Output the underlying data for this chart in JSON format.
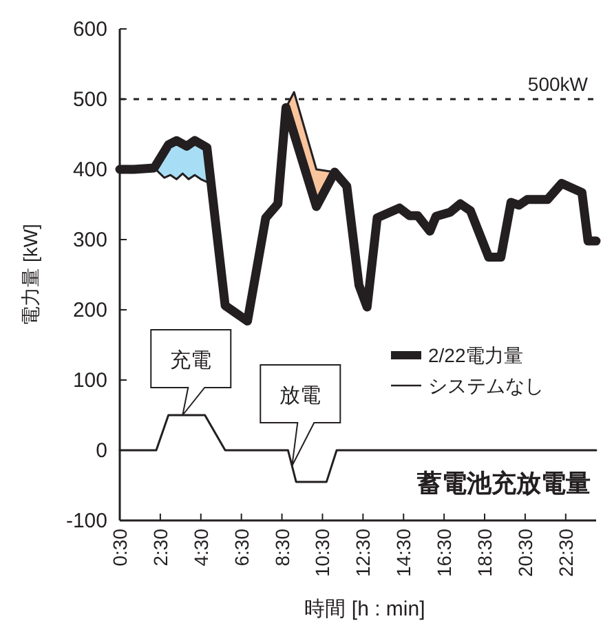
{
  "chart_data": {
    "type": "line",
    "xlabel": "時間 [h : min]",
    "ylabel": "電力量 [kW]",
    "xlim": [
      0.5,
      24
    ],
    "xticks": [
      {
        "value": 0.5,
        "label": "0:30"
      },
      {
        "value": 2.5,
        "label": "2:30"
      },
      {
        "value": 4.5,
        "label": "4:30"
      },
      {
        "value": 6.5,
        "label": "6:30"
      },
      {
        "value": 8.5,
        "label": "8:30"
      },
      {
        "value": 10.5,
        "label": "10:30"
      },
      {
        "value": 12.5,
        "label": "12:30"
      },
      {
        "value": 14.5,
        "label": "14:30"
      },
      {
        "value": 16.5,
        "label": "16:30"
      },
      {
        "value": 18.5,
        "label": "18:30"
      },
      {
        "value": 20.5,
        "label": "20:30"
      },
      {
        "value": 22.5,
        "label": "22:30"
      }
    ],
    "ylim": [
      -100,
      600
    ],
    "yticks": [
      -100,
      0,
      100,
      200,
      300,
      400,
      500,
      600
    ],
    "legend": "right",
    "series": [
      {
        "name": "2/22電力量",
        "color": "#231f20",
        "x": [
          0.5,
          1.2,
          2.2,
          2.9,
          3.3,
          3.8,
          4.2,
          4.8,
          5.7,
          6.8,
          7.7,
          8.3,
          8.7,
          10.2,
          11.1,
          11.7,
          12.3,
          12.7,
          13.2,
          14.3,
          14.8,
          15.2,
          15.8,
          16.1,
          16.8,
          17.3,
          17.8,
          18.7,
          19.3,
          19.8,
          20.2,
          20.6,
          21.6,
          22.3,
          23.3,
          23.6,
          24
        ],
        "values": [
          400,
          400,
          402,
          435,
          441,
          433,
          441,
          431,
          206,
          184,
          331,
          351,
          488,
          347,
          396,
          376,
          235,
          204,
          331,
          345,
          334,
          334,
          312,
          333,
          339,
          351,
          341,
          275,
          275,
          353,
          349,
          357,
          357,
          380,
          367,
          298,
          298
        ]
      },
      {
        "name": "システムなし",
        "color": "#231f20",
        "x": [
          2.2,
          2.7,
          3.0,
          3.3,
          3.6,
          3.9,
          4.2,
          4.5,
          4.8,
          5.0,
          6.0,
          8.7,
          9.1,
          10.2,
          11.1
        ],
        "values": [
          402,
          388,
          392,
          386,
          394,
          386,
          392,
          386,
          382,
          381,
          null,
          488,
          510,
          400,
          396
        ],
        "colors": [
          "#a8def5",
          "#a8def5",
          "#a8def5",
          "#a8def5",
          "#a8def5",
          "#a8def5",
          "#a8def5",
          "#a8def5",
          "#a8def5",
          null,
          null,
          "#f9c49c",
          "#f9c49c",
          "#f9c49c",
          null
        ]
      },
      {
        "name": "蓄電池充放電量",
        "color": "#231f20",
        "x": [
          0.5,
          2.3,
          2.9,
          4.7,
          5.7,
          8.8,
          9.2,
          10.7,
          11.2,
          24
        ],
        "values": [
          0,
          0,
          50,
          50,
          0,
          0,
          -45,
          -45,
          0,
          0
        ]
      }
    ],
    "ref_lines": [
      {
        "axis": "y",
        "value": 500,
        "label": "500kW",
        "line_style": "dashed",
        "color": "#231f20"
      }
    ],
    "annotations": [
      {
        "text": "充電",
        "x": 3.6,
        "y": 50
      },
      {
        "text": "放電",
        "x": 9.0,
        "y": -22
      }
    ]
  }
}
